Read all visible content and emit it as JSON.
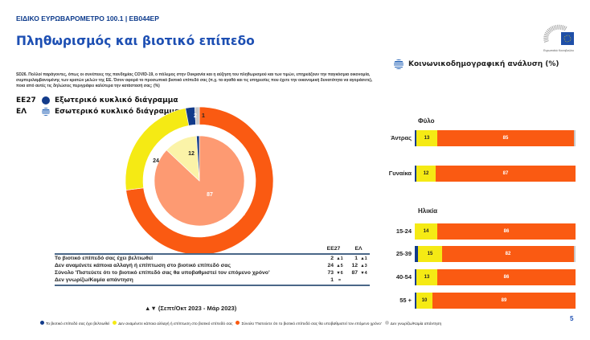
{
  "header": {
    "survey": "ΕΙΔΙΚΟ ΕΥΡΩΒΑΡΟΜΕΤΡΟ 100.1 | EB044EP",
    "title": "Πληθωρισμός και βιοτικό επίπεδο",
    "logo_text": "Ευρωπαϊκό Κοινοβούλιο"
  },
  "question": "SD26. Πολλοί παράγοντες, όπως οι συνέπειες της πανδημίας COVID-19, ο πόλεμος στην Ουκρανία και η αύξηση του πληθωρισμού και των τιμών, επηρεάζουν την παγκόσμια οικονομία, συμπεριλαμβανομένης των κρατών μελών της ΕΕ. Όσον αφορά το προσωπικό βιοτικό επίπεδό σας (π.χ. τα αγαθά και τις υπηρεσίες που έχετε την οικονομική δυνατότητα να αγοράσετε), ποια από αυτές τις δηλώσεις περιγράφει καλύτερα την κατάστασή σας; (%)",
  "donut_legend": [
    {
      "key": "ΕΕ27",
      "label": "Εξωτερικό κυκλικό διάγραμμα",
      "icon": "eu-dot-icon"
    },
    {
      "key": "ΕΛ",
      "label": "Εσωτερικό κυκλικό διάγραμμα",
      "icon": "greek-flag-icon"
    }
  ],
  "colors": {
    "improved": "#123b8a",
    "no_change": "#f5ea14",
    "worse": "#fa5a12",
    "dont_know": "#c8c8c8",
    "inner_worse": "#fd9a72",
    "inner_no_change": "#fbf3a8"
  },
  "chart_data": [
    {
      "type": "pie",
      "name": "ΕΕ27",
      "categories": [
        "Το βιοτικό επίπεδό σας έχει βελτιωθεί",
        "Δεν αναμένετε κάποια αλλαγή ή επίπτωση στο βιοτικό επίπεδό σας",
        "Σύνολο 'Πιστεύετε ότι το βιοτικό επίπεδό σας θα υποβαθμιστεί τον επόμενο χρόνο'",
        "Δεν γνωρίζω/Καμία απάντηση"
      ],
      "values": [
        2,
        24,
        73,
        1
      ],
      "labels": [
        "2",
        "24",
        "73",
        "1"
      ]
    },
    {
      "type": "pie",
      "name": "ΕΛ",
      "categories": [
        "Το βιοτικό επίπεδό σας έχει βελτιωθεί",
        "Δεν αναμένετε κάποια αλλαγή ή επίπτωση στο βιοτικό επίπεδό σας",
        "Σύνολο 'Πιστεύετε ότι το βιοτικό επίπεδό σας θα υποβαθμιστεί τον επόμενο χρόνο'"
      ],
      "values": [
        1,
        12,
        87
      ],
      "labels": [
        "12",
        "87"
      ]
    },
    {
      "type": "bar",
      "stacked": true,
      "orientation": "horizontal",
      "title": "Κοινωνικοδημογραφική ανάλυση (%)",
      "groups": [
        {
          "name": "Φύλο",
          "rows": [
            {
              "label": "Άντρας",
              "values": [
                1,
                13,
                85,
                1
              ]
            },
            {
              "label": "Γυναίκα",
              "values": [
                1,
                12,
                87,
                0
              ]
            }
          ]
        },
        {
          "name": "Ηλικία",
          "rows": [
            {
              "label": "15-24",
              "values": [
                0,
                14,
                86,
                0
              ]
            },
            {
              "label": "25-39",
              "values": [
                2,
                15,
                82,
                1
              ]
            },
            {
              "label": "40-54",
              "values": [
                1,
                13,
                86,
                0
              ]
            },
            {
              "label": "55 +",
              "values": [
                1,
                10,
                89,
                0
              ]
            }
          ]
        }
      ]
    }
  ],
  "table": {
    "headers": [
      "ΕΕ27",
      "ΕΛ"
    ],
    "rows": [
      {
        "label": "Το βιοτικό επίπεδό σας έχει βελτιωθεί",
        "eu": "2",
        "eu_d": "▲1",
        "el": "1",
        "el_d": "▲1"
      },
      {
        "label": "Δεν αναμένετε κάποια αλλαγή ή επίπτωση στο βιοτικό επίπεδό σας",
        "eu": "24",
        "eu_d": "▲5",
        "el": "12",
        "el_d": "▲3"
      },
      {
        "label": "Σύνολο 'Πιστεύετε ότι το βιοτικό επίπεδό σας θα υποβαθμιστεί τον επόμενο χρόνο'",
        "eu": "73",
        "eu_d": "▼6",
        "el": "87",
        "el_d": "▼4"
      },
      {
        "label": "Δεν γνωρίζω/Καμία απάντηση",
        "eu": "1",
        "eu_d": "=",
        "el": "",
        "el_d": ""
      }
    ]
  },
  "period": "▲▼ (Σεπτ/Οκτ 2023 - Μάρ 2023)",
  "bottom_legend": [
    "Το βιοτικό επίπεδό σας έχει βελτιωθεί",
    "Δεν αναμένετε κάποια αλλαγή ή επίπτωση στο βιοτικό επίπεδό σας",
    "Σύνολο 'Πιστεύετε ότι το βιοτικό επίπεδό σας θα υποβαθμιστεί τον επόμενο χρόνο'",
    "Δεν γνωρίζω/Καμία απάντηση"
  ],
  "page_number": "5"
}
